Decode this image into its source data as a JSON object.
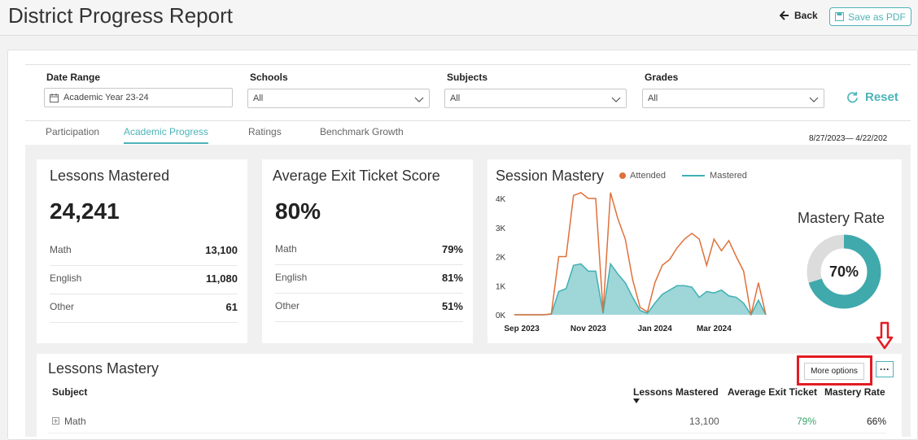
{
  "header": {
    "title": "District Progress Report",
    "back_label": "Back",
    "save_pdf_label": "Save as PDF"
  },
  "filters": {
    "date_range": {
      "label": "Date Range",
      "value": "Academic Year 23-24"
    },
    "schools": {
      "label": "Schools",
      "value": "All"
    },
    "subjects": {
      "label": "Subjects",
      "value": "All"
    },
    "grades": {
      "label": "Grades",
      "value": "All"
    },
    "reset_label": "Reset"
  },
  "tabs": [
    {
      "label": "Participation",
      "active": false
    },
    {
      "label": "Academic Progress",
      "active": true
    },
    {
      "label": "Ratings",
      "active": false
    },
    {
      "label": "Benchmark Growth",
      "active": false
    }
  ],
  "date_range_display": "8/27/2023— 4/22/202",
  "lessons_mastered": {
    "title": "Lessons Mastered",
    "total": "24,241",
    "rows": [
      {
        "label": "Math",
        "value": "13,100"
      },
      {
        "label": "English",
        "value": "11,080"
      },
      {
        "label": "Other",
        "value": "61"
      }
    ]
  },
  "exit_ticket": {
    "title": "Average Exit Ticket Score",
    "total": "80%",
    "rows": [
      {
        "label": "Math",
        "value": "79%"
      },
      {
        "label": "English",
        "value": "81%"
      },
      {
        "label": "Other",
        "value": "51%"
      }
    ]
  },
  "session_mastery": {
    "title": "Session Mastery",
    "legend_attended": "Attended",
    "legend_mastered": "Mastered",
    "colors": {
      "attended": "#e0703a",
      "mastered": "#3fb0b4",
      "mastered_fill": "#9fd6d8"
    }
  },
  "mastery_rate": {
    "title": "Mastery Rate",
    "value_label": "70%",
    "fraction": 0.7,
    "colors": {
      "filled": "#3fa9ac",
      "empty": "#dcdcdc"
    }
  },
  "chart_data": {
    "type": "area",
    "title": "Session Mastery",
    "xlabel": "",
    "ylabel": "",
    "ylim": [
      0,
      4000
    ],
    "y_ticks": [
      "0K",
      "1K",
      "2K",
      "3K",
      "4K"
    ],
    "x_ticks": [
      "Sep 2023",
      "Nov 2023",
      "Jan 2024",
      "Mar 2024"
    ],
    "x": [
      "2023-08-28",
      "2023-09-04",
      "2023-09-11",
      "2023-09-18",
      "2023-09-25",
      "2023-10-02",
      "2023-10-09",
      "2023-10-16",
      "2023-10-23",
      "2023-10-30",
      "2023-11-06",
      "2023-11-13",
      "2023-11-20",
      "2023-11-27",
      "2023-12-04",
      "2023-12-11",
      "2023-12-18",
      "2023-12-25",
      "2024-01-01",
      "2024-01-08",
      "2024-01-15",
      "2024-01-22",
      "2024-01-29",
      "2024-02-05",
      "2024-02-12",
      "2024-02-19",
      "2024-02-26",
      "2024-03-04",
      "2024-03-11",
      "2024-03-18",
      "2024-03-25",
      "2024-04-01",
      "2024-04-08",
      "2024-04-15",
      "2024-04-22"
    ],
    "series": [
      {
        "name": "Attended",
        "values": [
          0,
          0,
          0,
          0,
          0,
          30,
          2000,
          2000,
          4100,
          4200,
          4000,
          4000,
          100,
          4200,
          3300,
          2600,
          1200,
          250,
          100,
          1100,
          1700,
          1900,
          2300,
          2600,
          2800,
          2600,
          1700,
          2600,
          2200,
          2550,
          2000,
          1500,
          0,
          1100,
          0
        ]
      },
      {
        "name": "Mastered",
        "values": [
          0,
          0,
          0,
          0,
          0,
          20,
          800,
          900,
          1700,
          1750,
          1500,
          1500,
          50,
          1750,
          1400,
          1100,
          600,
          150,
          50,
          400,
          700,
          850,
          1000,
          1000,
          950,
          600,
          800,
          750,
          850,
          650,
          600,
          400,
          0,
          500,
          0
        ]
      }
    ]
  },
  "lessons_mastery_table": {
    "title": "Lessons Mastery",
    "more_options_label": "More options",
    "dots_label": "···",
    "columns": {
      "subject": "Subject",
      "lessons_mastered": "Lessons Mastered",
      "avg_exit_ticket": "Average Exit Ticket",
      "mastery_rate": "Mastery Rate"
    },
    "rows": [
      {
        "subject": "Math",
        "lessons_mastered": "13,100",
        "avg_exit_ticket": "79%",
        "mastery_rate": "66%"
      }
    ],
    "colors": {
      "exit_ticket_text": "#3aa36b",
      "highlight_border": "#e31b23"
    }
  }
}
